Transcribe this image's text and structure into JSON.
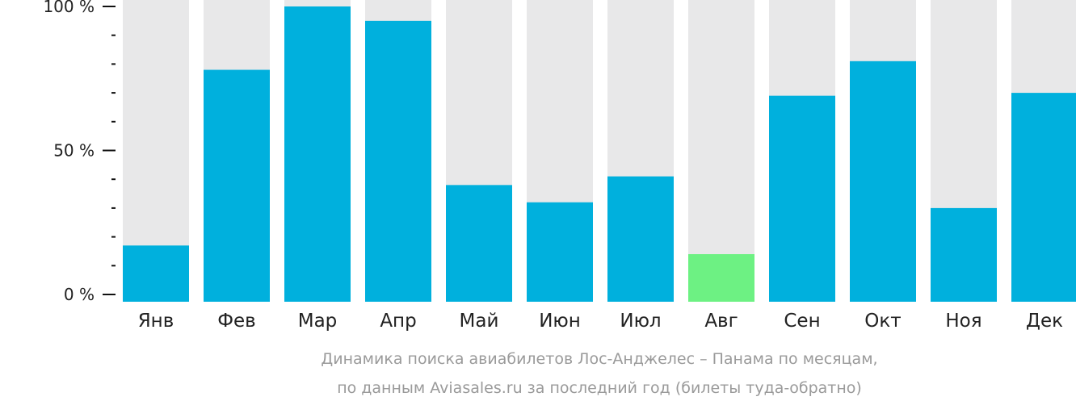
{
  "colors": {
    "background_bar": "#e8e8e9",
    "bar": "#00b0dd",
    "highlight_bar": "#6df183",
    "axis": "#111111",
    "text": "#222222",
    "caption": "#9a9a9a"
  },
  "caption": {
    "line1": "Динамика поиска авиабилетов Лос-Анджелес – Панама по месяцам,",
    "line2": "по данным Aviasales.ru за последний год (билеты туда-обратно)"
  },
  "chart_data": {
    "type": "bar",
    "categories": [
      "Янв",
      "Фев",
      "Мар",
      "Апр",
      "Май",
      "Июн",
      "Июл",
      "Авг",
      "Сен",
      "Окт",
      "Ноя",
      "Дек"
    ],
    "values": [
      17,
      78,
      100,
      95,
      38,
      32,
      41,
      14,
      69,
      81,
      30,
      70
    ],
    "highlight_index": 7,
    "ylim": [
      0,
      100
    ],
    "y_ticks": [
      {
        "value": 0,
        "label": "0 %"
      },
      {
        "value": 50,
        "label": "50 %"
      },
      {
        "value": 100,
        "label": "100 %"
      }
    ],
    "minor_tick_step": 10,
    "grid": false
  }
}
